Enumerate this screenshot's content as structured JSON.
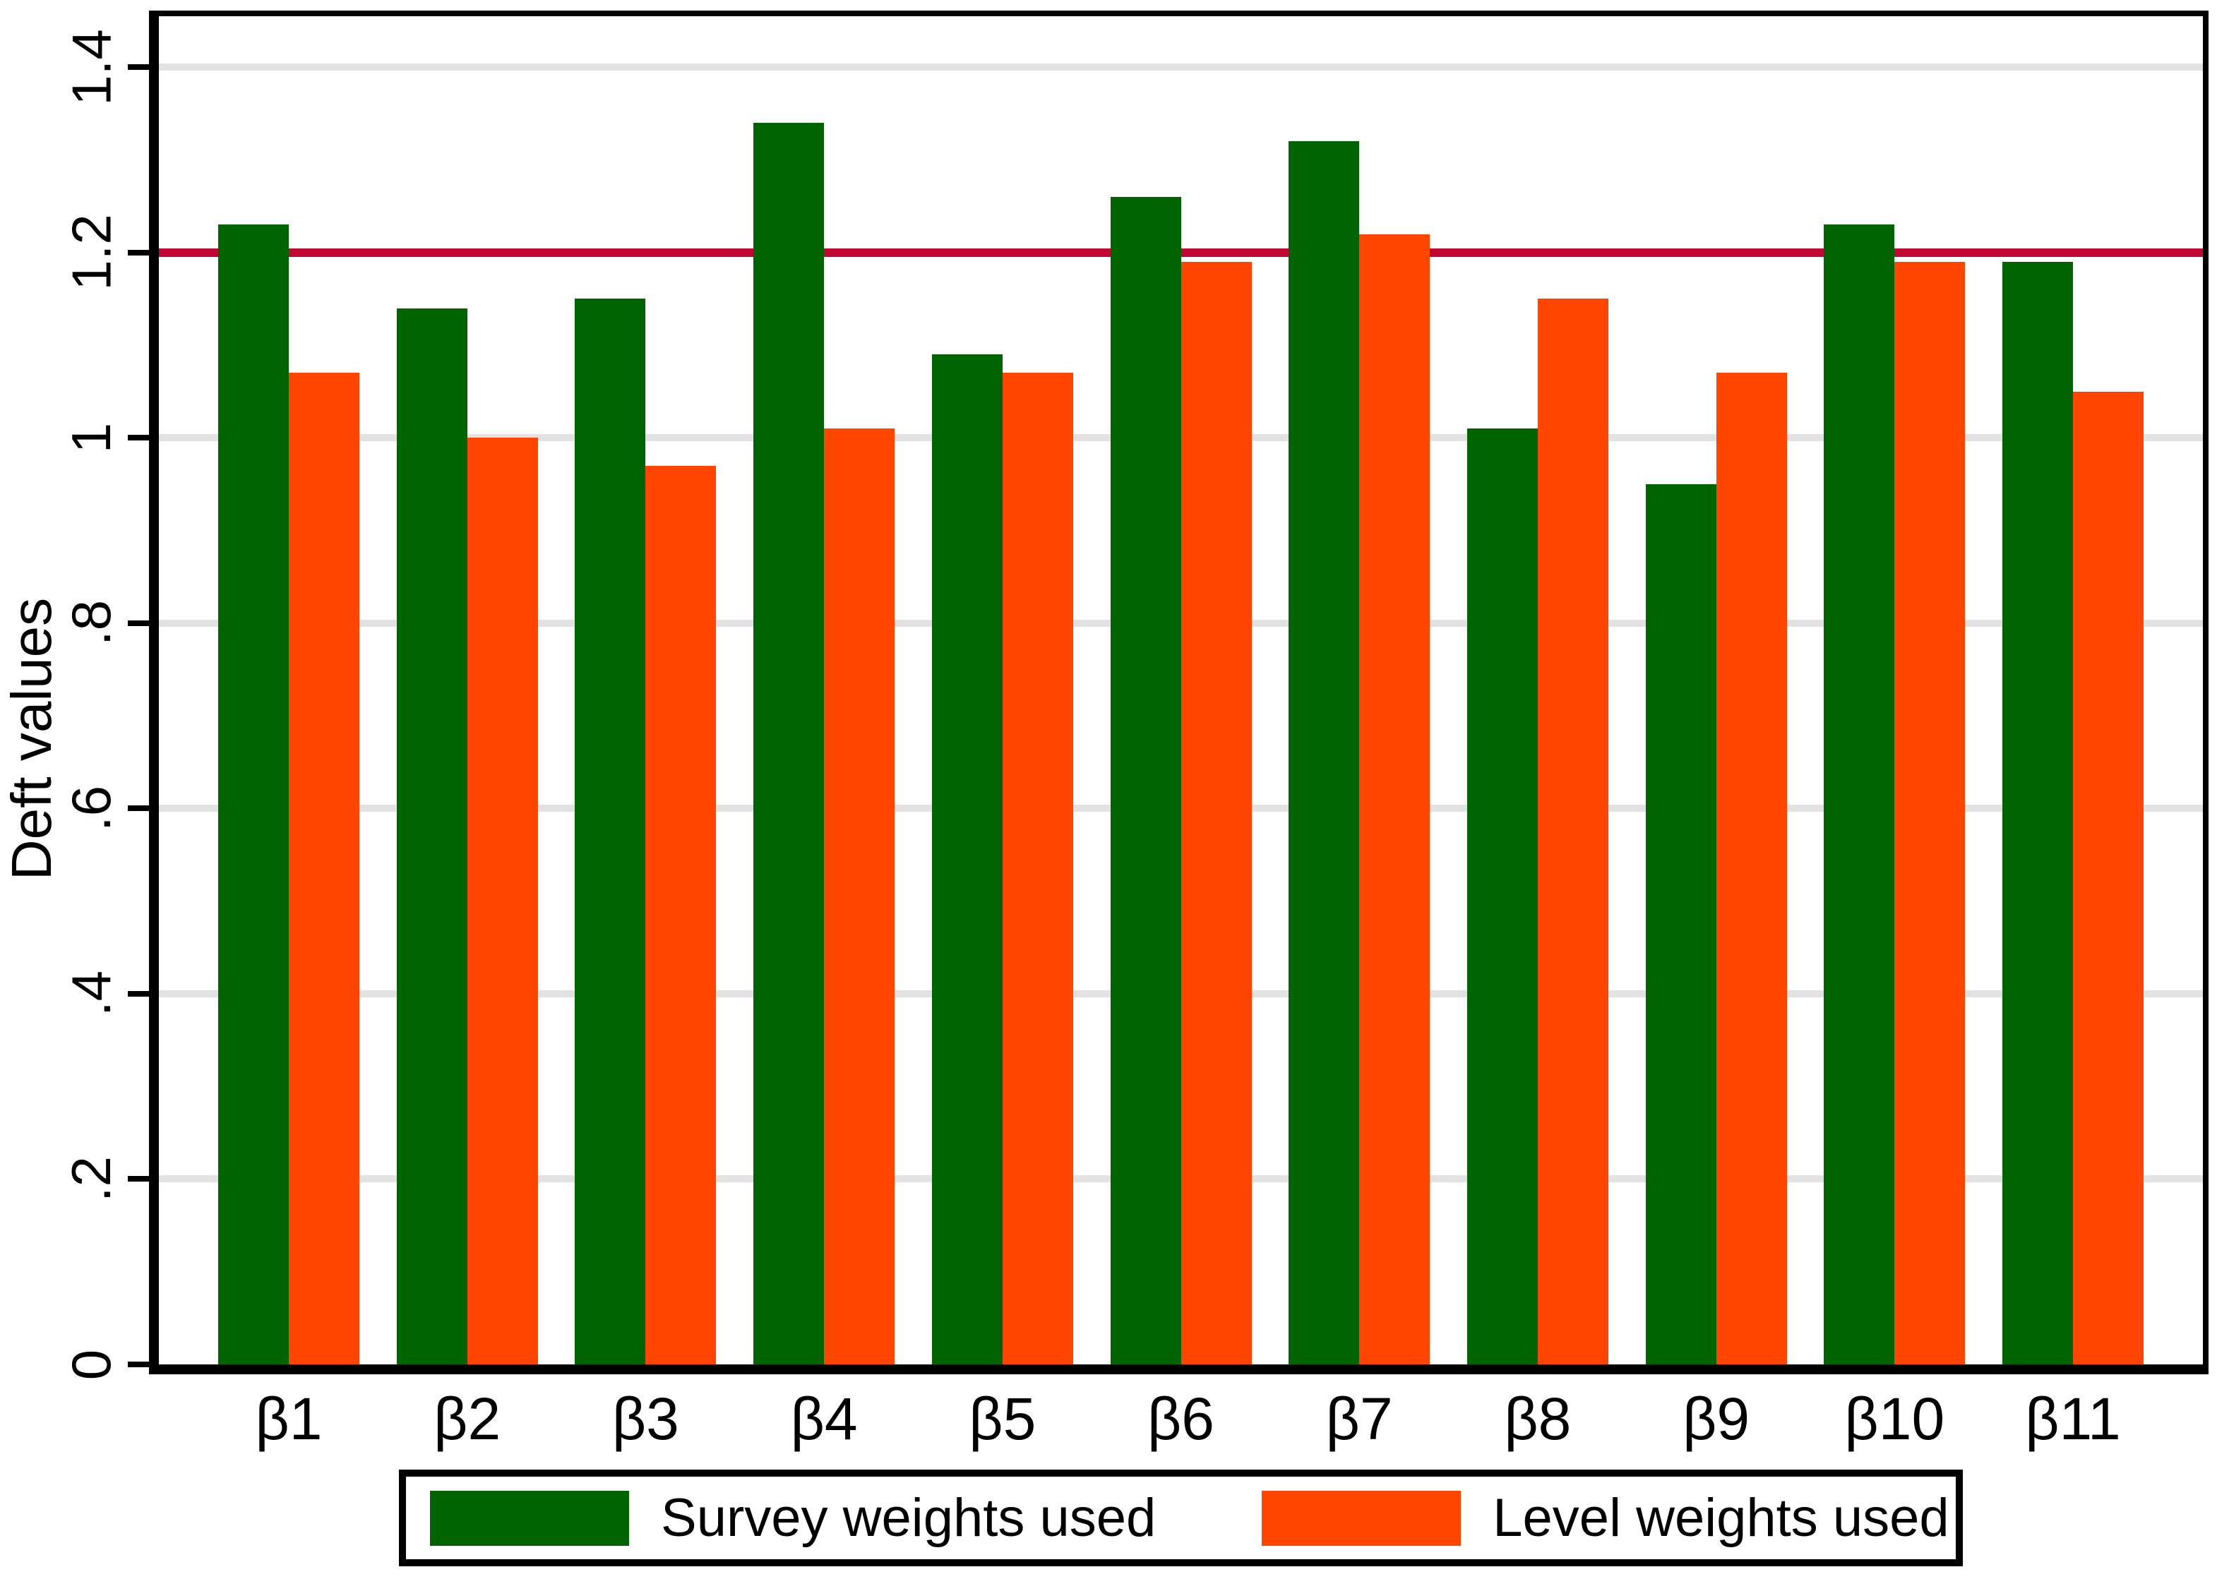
{
  "chart_data": {
    "type": "bar",
    "title": "",
    "ylabel": "Deft values",
    "xlabel": "",
    "categories": [
      "β1",
      "β2",
      "β3",
      "β4",
      "β5",
      "β6",
      "β7",
      "β8",
      "β9",
      "β10",
      "β11"
    ],
    "series": [
      {
        "name": "Survey weights used",
        "color": "#006400",
        "values": [
          1.23,
          1.14,
          1.15,
          1.34,
          1.09,
          1.26,
          1.32,
          1.01,
          0.95,
          1.23,
          1.19
        ]
      },
      {
        "name": "Level weights used",
        "color": "#FF4500",
        "values": [
          1.07,
          1.0,
          0.97,
          1.01,
          1.07,
          1.19,
          1.22,
          1.15,
          1.07,
          1.19,
          1.05
        ]
      }
    ],
    "ylim": [
      0,
      1.455
    ],
    "yticks": [
      0,
      0.2,
      0.4,
      0.6,
      0.8,
      1,
      1.2,
      1.4
    ],
    "ytick_labels": [
      "0",
      ".2",
      ".4",
      ".6",
      ".8",
      "1",
      "1.2",
      "1.4"
    ],
    "reference_line": {
      "value": 1.2,
      "color": "#C10534"
    },
    "grid": true,
    "gridline_color": "#E2E2E2",
    "axis_color": "#000000",
    "legend_position": "bottom-center"
  }
}
